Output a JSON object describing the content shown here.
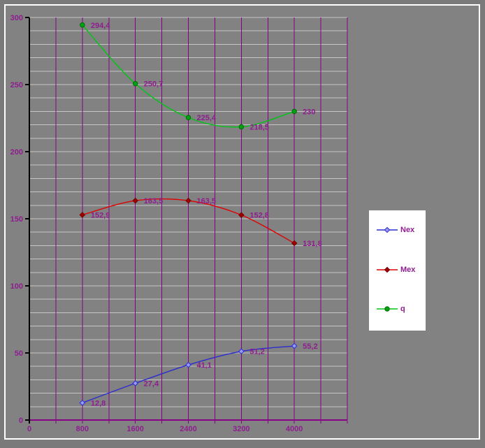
{
  "window": {
    "bg_outer": "#7a7a7a",
    "bg_inner": "#828282",
    "frame_color": "#ffffff"
  },
  "style": {
    "text_color": "#8f1d8f",
    "h_grid_color": "#c6c6c6",
    "v_grid_color": "#850085",
    "x_axis_color": "#850085",
    "y_axis_color": "#000000",
    "legend_bg": "#ffffff"
  },
  "chart_data": {
    "type": "line",
    "title": "",
    "x": [
      800,
      1600,
      2400,
      3200,
      4000
    ],
    "series": [
      {
        "name": "Nex",
        "line_color": "#2b2bd0",
        "marker": "diamond",
        "marker_fill": "#9a9af5",
        "marker_edge": "#2b2bd0",
        "values": [
          12.8,
          27.4,
          41.1,
          51.2,
          55.2
        ],
        "point_labels": [
          "12,8",
          "27,4",
          "41,1",
          "51,2",
          "55,2"
        ]
      },
      {
        "name": "Mex",
        "line_color": "#e00000",
        "marker": "diamond",
        "marker_fill": "#9c0000",
        "marker_edge": "#7a0000",
        "values": [
          152.9,
          163.5,
          163.5,
          152.8,
          131.8
        ],
        "point_labels": [
          "152,9",
          "163,5",
          "163,5",
          "152,8",
          "131,8"
        ]
      },
      {
        "name": "q",
        "line_color": "#00c416",
        "marker": "circle",
        "marker_fill": "#00a216",
        "marker_edge": "#006a00",
        "values": [
          294.4,
          250.7,
          225.4,
          218.5,
          230
        ],
        "point_labels": [
          "294,4",
          "250,7",
          "225,4",
          "218,5",
          "230"
        ]
      }
    ],
    "xlim": [
      0,
      4800
    ],
    "ylim": [
      0,
      300
    ],
    "x_grid_step": 400,
    "y_grid_step": 10,
    "x_tick_values": [
      0,
      800,
      1600,
      2400,
      3200,
      4000
    ],
    "x_tick_labels": [
      "0",
      "800",
      "1600",
      "2400",
      "3200",
      "4000"
    ],
    "y_tick_values": [
      0,
      50,
      100,
      150,
      200,
      250,
      300
    ],
    "y_tick_labels": [
      "0",
      "50",
      "100",
      "150",
      "200",
      "250",
      "300"
    ],
    "grid": true,
    "smooth": true,
    "legend_position": "right"
  }
}
